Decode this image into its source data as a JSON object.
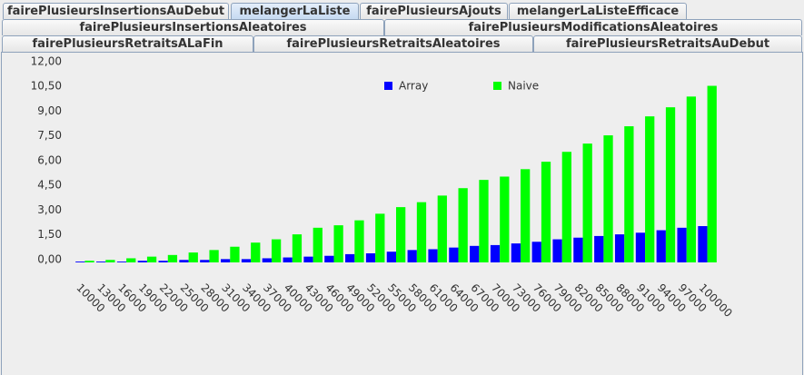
{
  "tabs": {
    "rows": [
      [
        "fairePlusieursInsertionsAuDebut",
        "melangerLaListe",
        "fairePlusieursAjouts",
        "melangerLaListeEfficace"
      ],
      [
        "fairePlusieursInsertionsAleatoires",
        "fairePlusieursModificationsAleatoires"
      ],
      [
        "fairePlusieursRetraitsALaFin",
        "fairePlusieursRetraitsAleatoires",
        "fairePlusieursRetraitsAuDebut"
      ]
    ],
    "selected": "melangerLaListe"
  },
  "chart_data": {
    "type": "bar",
    "categories": [
      "10000",
      "13000",
      "16000",
      "19000",
      "22000",
      "25000",
      "28000",
      "31000",
      "34000",
      "37000",
      "40000",
      "43000",
      "46000",
      "49000",
      "52000",
      "55000",
      "58000",
      "61000",
      "64000",
      "67000",
      "70000",
      "73000",
      "76000",
      "79000",
      "82000",
      "85000",
      "88000",
      "91000",
      "94000",
      "97000",
      "100000"
    ],
    "series": [
      {
        "name": "Array",
        "color": "#0000ff",
        "values": [
          0.05,
          0.05,
          0.05,
          0.1,
          0.1,
          0.15,
          0.15,
          0.2,
          0.2,
          0.25,
          0.3,
          0.35,
          0.4,
          0.5,
          0.55,
          0.65,
          0.75,
          0.8,
          0.9,
          1.0,
          1.05,
          1.15,
          1.25,
          1.4,
          1.5,
          1.6,
          1.7,
          1.8,
          1.95,
          2.1,
          2.2
        ]
      },
      {
        "name": "Naive",
        "color": "#00ff00",
        "values": [
          0.1,
          0.15,
          0.25,
          0.35,
          0.45,
          0.6,
          0.75,
          0.95,
          1.2,
          1.4,
          1.7,
          2.1,
          2.25,
          2.55,
          2.95,
          3.35,
          3.65,
          4.05,
          4.5,
          5.0,
          5.2,
          5.65,
          6.1,
          6.7,
          7.2,
          7.7,
          8.25,
          8.85,
          9.4,
          10.05,
          10.7
        ]
      }
    ],
    "ylim": [
      0,
      12.6
    ],
    "yticks": [
      {
        "value": 0,
        "label": "0,00"
      },
      {
        "value": 1.5,
        "label": "1,50"
      },
      {
        "value": 3,
        "label": "3,00"
      },
      {
        "value": 4.5,
        "label": "4,50"
      },
      {
        "value": 6,
        "label": "6,00"
      },
      {
        "value": 7.5,
        "label": "7,50"
      },
      {
        "value": 9,
        "label": "9,00"
      },
      {
        "value": 10.5,
        "label": "10,50"
      },
      {
        "value": 12,
        "label": "12,00"
      }
    ],
    "legend": "top"
  }
}
